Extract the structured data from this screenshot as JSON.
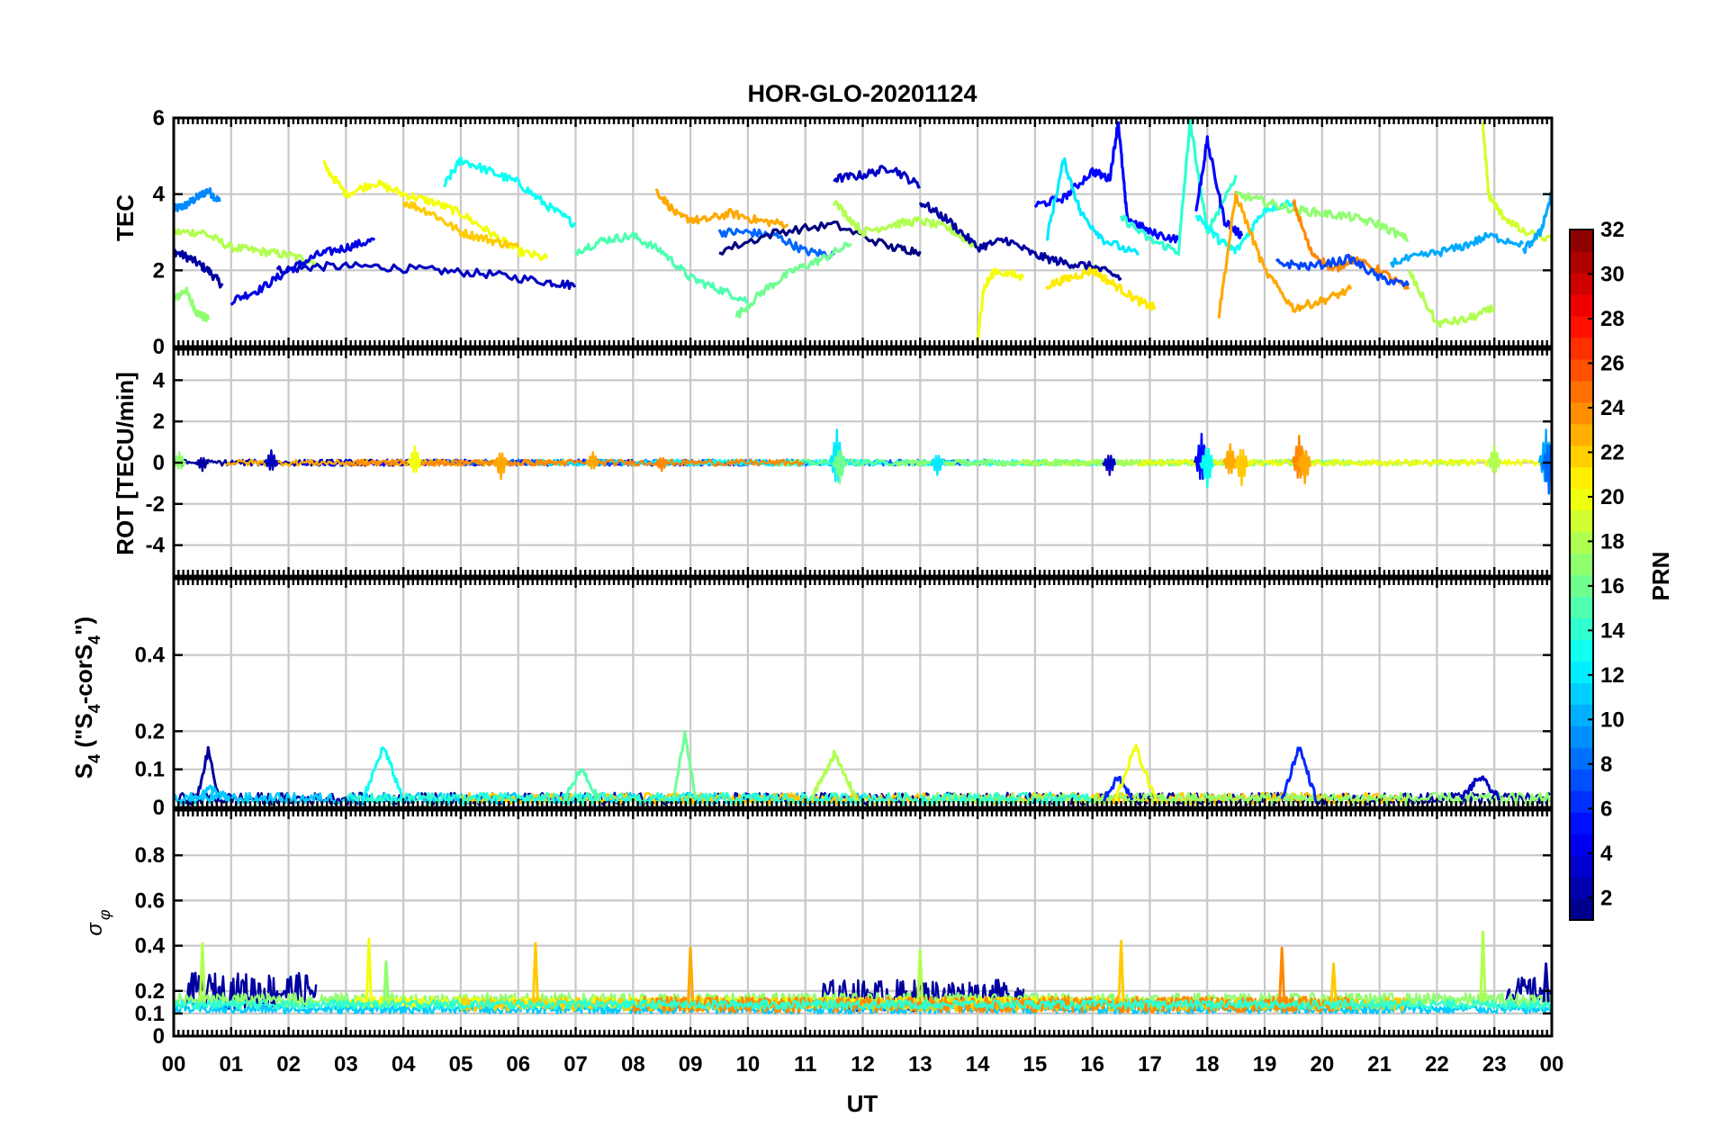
{
  "figure": {
    "title": "HOR-GLO-20201124",
    "xlabel": "UT"
  },
  "colors": {
    "background": "#ffffff",
    "axes": "#000000",
    "grid": "#c8c8c8",
    "colormap": "jet"
  },
  "chart_data": [
    {
      "id": "tec",
      "type": "line",
      "ylabel": "TEC",
      "ylim": [
        0,
        6
      ],
      "yticks": [
        0,
        2,
        4,
        6
      ],
      "ytick_labels": [
        "0",
        "2",
        "4",
        "6"
      ],
      "xlim": [
        0,
        24
      ],
      "grid": true,
      "color_by": "PRN",
      "series": [
        {
          "prn": 9,
          "x": [
            0.0,
            0.2,
            0.4,
            0.6,
            0.8
          ],
          "y": [
            3.6,
            3.7,
            3.9,
            4.1,
            3.8
          ]
        },
        {
          "prn": 2,
          "x": [
            0.0,
            0.3,
            0.6,
            0.85
          ],
          "y": [
            2.5,
            2.3,
            2.0,
            1.6
          ]
        },
        {
          "prn": 17,
          "x": [
            0.0,
            0.2,
            0.4,
            0.6
          ],
          "y": [
            1.2,
            1.5,
            0.9,
            0.7
          ]
        },
        {
          "prn": 18,
          "x": [
            0.0,
            0.5,
            1.0,
            1.5,
            2.0,
            2.5
          ],
          "y": [
            3.0,
            3.0,
            2.6,
            2.5,
            2.4,
            2.2
          ]
        },
        {
          "prn": 3,
          "x": [
            1.8,
            2.5,
            3.5,
            4.5,
            5.5,
            6.5,
            7.0
          ],
          "y": [
            2.0,
            2.1,
            2.1,
            2.0,
            1.9,
            1.7,
            1.6
          ]
        },
        {
          "prn": 4,
          "x": [
            1.0,
            1.5,
            2.0,
            2.5,
            3.0,
            3.5
          ],
          "y": [
            1.2,
            1.5,
            2.0,
            2.4,
            2.6,
            2.8
          ]
        },
        {
          "prn": 20,
          "x": [
            2.6,
            3.0,
            3.5,
            4.0,
            4.5,
            5.0,
            5.5,
            6.0,
            6.5
          ],
          "y": [
            4.8,
            4.0,
            4.3,
            4.0,
            3.8,
            3.5,
            3.0,
            2.5,
            2.3
          ]
        },
        {
          "prn": 13,
          "x": [
            4.7,
            5.0,
            5.5,
            6.0,
            6.5,
            7.0
          ],
          "y": [
            4.2,
            4.9,
            4.6,
            4.3,
            3.7,
            3.2
          ]
        },
        {
          "prn": 22,
          "x": [
            4.0,
            4.5,
            5.0,
            5.5,
            6.0
          ],
          "y": [
            3.8,
            3.5,
            3.0,
            2.8,
            2.6
          ]
        },
        {
          "prn": 15,
          "x": [
            7.0,
            7.5,
            8.0,
            8.5,
            9.0,
            9.5,
            10.0
          ],
          "y": [
            2.5,
            2.8,
            2.9,
            2.5,
            1.8,
            1.5,
            1.2
          ]
        },
        {
          "prn": 23,
          "x": [
            8.4,
            8.8,
            9.2,
            9.7,
            10.2,
            10.7
          ],
          "y": [
            4.1,
            3.4,
            3.3,
            3.5,
            3.3,
            3.2
          ]
        },
        {
          "prn": 8,
          "x": [
            9.5,
            10.0,
            10.5,
            11.0,
            11.5
          ],
          "y": [
            3.0,
            3.0,
            2.9,
            2.5,
            2.4
          ]
        },
        {
          "prn": 16,
          "x": [
            9.8,
            10.3,
            10.8,
            11.3,
            11.8
          ],
          "y": [
            0.8,
            1.5,
            2.0,
            2.3,
            2.7
          ]
        },
        {
          "prn": 3,
          "x": [
            11.5,
            12.0,
            12.5,
            13.0
          ],
          "y": [
            4.4,
            4.5,
            4.7,
            4.2
          ]
        },
        {
          "prn": 1,
          "x": [
            9.5,
            10.5,
            11.5,
            12.5,
            13.0
          ],
          "y": [
            2.5,
            3.0,
            3.2,
            2.6,
            2.5
          ]
        },
        {
          "prn": 18,
          "x": [
            11.5,
            12.0,
            12.5,
            13.0,
            13.5,
            14.0
          ],
          "y": [
            3.8,
            3.0,
            3.2,
            3.3,
            3.1,
            2.6
          ]
        },
        {
          "prn": 2,
          "x": [
            13.0,
            13.5,
            14.0,
            14.5,
            15.0,
            15.5,
            16.0,
            16.5
          ],
          "y": [
            3.8,
            3.3,
            2.6,
            2.8,
            2.4,
            2.2,
            2.1,
            1.8
          ]
        },
        {
          "prn": 20,
          "x": [
            14.0,
            14.1,
            14.3,
            14.8
          ],
          "y": [
            0.1,
            1.5,
            2.0,
            1.8
          ]
        },
        {
          "prn": 21,
          "x": [
            15.2,
            15.6,
            16.0,
            16.4,
            16.8,
            17.1
          ],
          "y": [
            1.6,
            1.8,
            2.0,
            1.6,
            1.2,
            1.0
          ]
        },
        {
          "prn": 5,
          "x": [
            15.0,
            15.5,
            16.0,
            16.3,
            16.45,
            16.6,
            17.0,
            17.5
          ],
          "y": [
            3.7,
            3.9,
            4.6,
            4.4,
            5.9,
            3.4,
            3.0,
            2.8
          ]
        },
        {
          "prn": 12,
          "x": [
            15.2,
            15.5,
            15.8,
            16.2,
            16.8
          ],
          "y": [
            2.8,
            4.9,
            3.5,
            2.8,
            2.4
          ]
        },
        {
          "prn": 14,
          "x": [
            16.5,
            17.0,
            17.5,
            17.7,
            18.0,
            18.5
          ],
          "y": [
            3.4,
            2.8,
            2.5,
            5.9,
            3.0,
            4.5
          ]
        },
        {
          "prn": 5,
          "x": [
            17.8,
            18.0,
            18.3,
            18.6
          ],
          "y": [
            3.5,
            5.4,
            3.3,
            2.9
          ]
        },
        {
          "prn": 13,
          "x": [
            17.8,
            18.2,
            18.5,
            19.0,
            19.5
          ],
          "y": [
            3.5,
            2.8,
            2.5,
            3.6,
            3.8
          ]
        },
        {
          "prn": 23,
          "x": [
            18.2,
            18.5,
            19.0,
            19.5,
            20.0,
            20.5
          ],
          "y": [
            0.8,
            4.0,
            2.0,
            1.0,
            1.2,
            1.5
          ]
        },
        {
          "prn": 17,
          "x": [
            18.5,
            19.0,
            19.5,
            20.0,
            20.5,
            21.0,
            21.5
          ],
          "y": [
            4.0,
            3.8,
            3.6,
            3.5,
            3.4,
            3.2,
            2.8
          ]
        },
        {
          "prn": 24,
          "x": [
            19.5,
            19.8,
            20.2,
            20.5,
            21.0,
            21.5
          ],
          "y": [
            3.8,
            2.5,
            2.0,
            2.3,
            2.0,
            1.5
          ]
        },
        {
          "prn": 7,
          "x": [
            19.2,
            19.8,
            20.5,
            21.0,
            21.5
          ],
          "y": [
            2.2,
            2.1,
            2.3,
            1.8,
            1.6
          ]
        },
        {
          "prn": 18,
          "x": [
            21.5,
            22.0,
            22.5,
            23.0
          ],
          "y": [
            2.0,
            0.6,
            0.7,
            1.0
          ]
        },
        {
          "prn": 10,
          "x": [
            21.2,
            21.8,
            22.4,
            22.9,
            23.5
          ],
          "y": [
            2.2,
            2.4,
            2.6,
            2.9,
            2.7
          ]
        },
        {
          "prn": 19,
          "x": [
            22.8,
            22.9,
            23.1,
            23.5,
            24.0
          ],
          "y": [
            5.8,
            4.0,
            3.5,
            3.0,
            2.8
          ]
        },
        {
          "prn": 10,
          "x": [
            23.5,
            23.8,
            24.0
          ],
          "y": [
            2.5,
            3.0,
            4.0
          ]
        }
      ]
    },
    {
      "id": "rot",
      "type": "line",
      "ylabel": "ROT [TECU/min]",
      "ylim": [
        -5.5,
        5.5
      ],
      "yticks": [
        -4,
        -2,
        0,
        2,
        4
      ],
      "ytick_labels": [
        "-4",
        "-2",
        "0",
        "2",
        "4"
      ],
      "xlim": [
        0,
        24
      ],
      "grid": true,
      "color_by": "PRN",
      "baseline": 0,
      "noise_amplitude": 0.15,
      "spikes": [
        {
          "x": 0.1,
          "y": 0.5,
          "prn": 17
        },
        {
          "x": 0.5,
          "y": -0.4,
          "prn": 2
        },
        {
          "x": 1.7,
          "y": 0.6,
          "prn": 3
        },
        {
          "x": 4.2,
          "y": 0.8,
          "prn": 20
        },
        {
          "x": 5.7,
          "y": -0.8,
          "prn": 23
        },
        {
          "x": 7.3,
          "y": 0.5,
          "prn": 23
        },
        {
          "x": 8.5,
          "y": -0.4,
          "prn": 24
        },
        {
          "x": 11.55,
          "y": 1.6,
          "prn": 12
        },
        {
          "x": 11.6,
          "y": -1.0,
          "prn": 16
        },
        {
          "x": 13.3,
          "y": -0.6,
          "prn": 12
        },
        {
          "x": 16.3,
          "y": -0.6,
          "prn": 3
        },
        {
          "x": 17.9,
          "y": 1.4,
          "prn": 5
        },
        {
          "x": 18.0,
          "y": -1.2,
          "prn": 13
        },
        {
          "x": 18.4,
          "y": 0.9,
          "prn": 23
        },
        {
          "x": 18.6,
          "y": -1.1,
          "prn": 22
        },
        {
          "x": 19.6,
          "y": 1.3,
          "prn": 24
        },
        {
          "x": 19.7,
          "y": -1.0,
          "prn": 23
        },
        {
          "x": 23.0,
          "y": 0.8,
          "prn": 18
        },
        {
          "x": 23.9,
          "y": 1.6,
          "prn": 10
        },
        {
          "x": 23.95,
          "y": -1.5,
          "prn": 8
        }
      ]
    },
    {
      "id": "s4",
      "type": "line",
      "ylabel": "S₄ (\"S₄-corS₄\")",
      "ylabel_parts": {
        "a": "S",
        "b": "4",
        "c": " (\"S",
        "d": "4",
        "e": "-corS",
        "f": "4",
        "g": "\")"
      },
      "ylim": [
        0,
        0.6
      ],
      "yticks": [
        0,
        0.1,
        0.2,
        0.4
      ],
      "ytick_labels": [
        "0",
        "0.1",
        "0.2",
        "0.4"
      ],
      "xlim": [
        0,
        24
      ],
      "grid": true,
      "color_by": "PRN",
      "baseline": 0.02,
      "noise_amplitude": 0.015,
      "bumps": [
        {
          "x0": 0.4,
          "x1": 0.8,
          "peak": 0.15,
          "prn": 2
        },
        {
          "x0": 0.3,
          "x1": 1.0,
          "peak": 0.05,
          "prn": 11
        },
        {
          "x0": 3.3,
          "x1": 4.0,
          "peak": 0.16,
          "prn": 13
        },
        {
          "x0": 6.8,
          "x1": 7.4,
          "peak": 0.1,
          "prn": 15
        },
        {
          "x0": 8.7,
          "x1": 9.1,
          "peak": 0.19,
          "prn": 16
        },
        {
          "x0": 11.1,
          "x1": 11.9,
          "peak": 0.14,
          "prn": 18
        },
        {
          "x0": 16.2,
          "x1": 16.7,
          "peak": 0.08,
          "prn": 6
        },
        {
          "x0": 16.4,
          "x1": 17.1,
          "peak": 0.16,
          "prn": 20
        },
        {
          "x0": 19.3,
          "x1": 19.9,
          "peak": 0.16,
          "prn": 6
        },
        {
          "x0": 22.4,
          "x1": 23.1,
          "peak": 0.08,
          "prn": 3
        }
      ],
      "traces": [
        {
          "prn": 2,
          "x0": 0,
          "x1": 24
        },
        {
          "prn": 11,
          "x0": 0,
          "x1": 12
        },
        {
          "prn": 22,
          "x0": 5,
          "x1": 21.5
        },
        {
          "prn": 17,
          "x0": 13,
          "x1": 24
        },
        {
          "prn": 14,
          "x0": 3,
          "x1": 16
        }
      ]
    },
    {
      "id": "sigma_phi",
      "type": "line",
      "ylabel": "σ φ",
      "ylabel_parts": {
        "sigma": "σ",
        "phi": "φ"
      },
      "ylim": [
        0,
        1.0
      ],
      "yticks": [
        0,
        0.1,
        0.2,
        0.4,
        0.6,
        0.8
      ],
      "ytick_labels": [
        "0",
        "0.1",
        "0.2",
        "0.4",
        "0.6",
        "0.8"
      ],
      "xlim": [
        0,
        24
      ],
      "grid": true,
      "color_by": "PRN",
      "traces": [
        {
          "prn": 2,
          "x0": 0.2,
          "x1": 2.5,
          "level": 0.2,
          "noise": 0.08
        },
        {
          "prn": 2,
          "x0": 11.3,
          "x1": 14.8,
          "level": 0.18,
          "noise": 0.07
        },
        {
          "prn": 2,
          "x0": 23.2,
          "x1": 24,
          "level": 0.2,
          "noise": 0.06
        },
        {
          "prn": 11,
          "x0": 0,
          "x1": 24,
          "level": 0.12,
          "noise": 0.02
        },
        {
          "prn": 17,
          "x0": 0,
          "x1": 24,
          "level": 0.16,
          "noise": 0.03
        },
        {
          "prn": 20,
          "x0": 3,
          "x1": 17,
          "level": 0.15,
          "noise": 0.025
        },
        {
          "prn": 22,
          "x0": 5,
          "x1": 21.5,
          "level": 0.14,
          "noise": 0.03
        },
        {
          "prn": 24,
          "x0": 8,
          "x1": 20.5,
          "level": 0.14,
          "noise": 0.035
        },
        {
          "prn": 14,
          "x0": 0,
          "x1": 24,
          "level": 0.14,
          "noise": 0.02
        }
      ],
      "spikes": [
        {
          "x": 0.5,
          "y": 0.41,
          "prn": 18
        },
        {
          "x": 3.4,
          "y": 0.43,
          "prn": 20
        },
        {
          "x": 3.7,
          "y": 0.33,
          "prn": 17
        },
        {
          "x": 6.3,
          "y": 0.41,
          "prn": 22
        },
        {
          "x": 9.0,
          "y": 0.39,
          "prn": 23
        },
        {
          "x": 13.0,
          "y": 0.38,
          "prn": 18
        },
        {
          "x": 16.5,
          "y": 0.42,
          "prn": 22
        },
        {
          "x": 19.3,
          "y": 0.39,
          "prn": 24
        },
        {
          "x": 20.2,
          "y": 0.32,
          "prn": 22
        },
        {
          "x": 22.8,
          "y": 0.46,
          "prn": 18
        },
        {
          "x": 23.9,
          "y": 0.32,
          "prn": 2
        }
      ]
    }
  ],
  "x_axis": {
    "ticks": [
      0,
      1,
      2,
      3,
      4,
      5,
      6,
      7,
      8,
      9,
      10,
      11,
      12,
      13,
      14,
      15,
      16,
      17,
      18,
      19,
      20,
      21,
      22,
      23,
      24
    ],
    "tick_labels": [
      "00",
      "01",
      "02",
      "03",
      "04",
      "05",
      "06",
      "07",
      "08",
      "09",
      "10",
      "11",
      "12",
      "13",
      "14",
      "15",
      "16",
      "17",
      "18",
      "19",
      "20",
      "21",
      "22",
      "23",
      "00"
    ]
  },
  "colorbar": {
    "label": "PRN",
    "range": [
      1,
      32
    ],
    "ticks": [
      2,
      4,
      6,
      8,
      10,
      12,
      14,
      16,
      18,
      20,
      22,
      24,
      26,
      28,
      30,
      32
    ],
    "tick_labels": [
      "2",
      "4",
      "6",
      "8",
      "10",
      "12",
      "14",
      "16",
      "18",
      "20",
      "22",
      "24",
      "26",
      "28",
      "30",
      "32"
    ],
    "segments": 32
  }
}
